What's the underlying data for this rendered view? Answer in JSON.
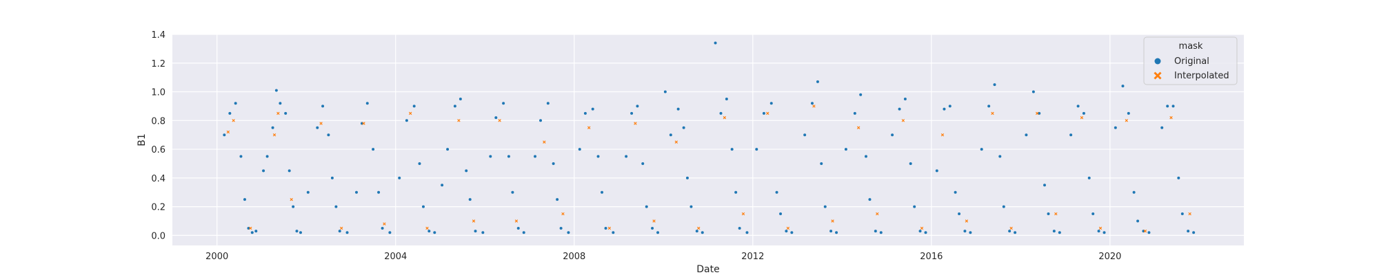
{
  "chart_data": {
    "type": "scatter",
    "title": "",
    "xlabel": "Date",
    "ylabel": "B1",
    "x_domain": [
      "1999-01-01",
      "2022-12-31"
    ],
    "ylim": [
      -0.07,
      1.4
    ],
    "x_ticks": [
      {
        "value": "2000-01-01",
        "label": "2000"
      },
      {
        "value": "2004-01-01",
        "label": "2004"
      },
      {
        "value": "2008-01-01",
        "label": "2008"
      },
      {
        "value": "2012-01-01",
        "label": "2012"
      },
      {
        "value": "2016-01-01",
        "label": "2016"
      },
      {
        "value": "2020-01-01",
        "label": "2020"
      }
    ],
    "y_ticks": [
      {
        "value": 0.0,
        "label": "0.0"
      },
      {
        "value": 0.2,
        "label": "0.2"
      },
      {
        "value": 0.4,
        "label": "0.4"
      },
      {
        "value": 0.6,
        "label": "0.6"
      },
      {
        "value": 0.8,
        "label": "0.8"
      },
      {
        "value": 1.0,
        "label": "1.0"
      },
      {
        "value": 1.2,
        "label": "1.2"
      },
      {
        "value": 1.4,
        "label": "1.4"
      }
    ],
    "grid": true,
    "legend": {
      "title": "mask",
      "position": "top-right",
      "entries": [
        {
          "label": "Original",
          "marker": "circle",
          "color": "#1f77b4"
        },
        {
          "label": "Interpolated",
          "marker": "x",
          "color": "#ff7f0e"
        }
      ]
    },
    "colors": {
      "plot_background": "#eaeaf2",
      "grid": "#ffffff",
      "original": "#1f77b4",
      "interpolated": "#ff7f0e"
    },
    "series": [
      {
        "name": "Original",
        "marker": "circle",
        "points": [
          [
            "2000-03-01",
            0.7
          ],
          [
            "2000-04-15",
            0.85
          ],
          [
            "2000-06-01",
            0.92
          ],
          [
            "2000-07-15",
            0.55
          ],
          [
            "2000-08-15",
            0.25
          ],
          [
            "2000-09-15",
            0.05
          ],
          [
            "2000-10-15",
            0.02
          ],
          [
            "2000-11-15",
            0.03
          ],
          [
            "2001-01-15",
            0.45
          ],
          [
            "2001-02-15",
            0.55
          ],
          [
            "2001-04-01",
            0.75
          ],
          [
            "2001-05-01",
            1.01
          ],
          [
            "2001-06-01",
            0.92
          ],
          [
            "2001-07-15",
            0.85
          ],
          [
            "2001-08-15",
            0.45
          ],
          [
            "2001-09-15",
            0.2
          ],
          [
            "2001-10-15",
            0.03
          ],
          [
            "2001-11-15",
            0.02
          ],
          [
            "2002-01-15",
            0.3
          ],
          [
            "2002-04-01",
            0.75
          ],
          [
            "2002-05-15",
            0.9
          ],
          [
            "2002-07-01",
            0.7
          ],
          [
            "2002-08-01",
            0.4
          ],
          [
            "2002-09-01",
            0.2
          ],
          [
            "2002-10-01",
            0.03
          ],
          [
            "2002-12-01",
            0.02
          ],
          [
            "2003-02-15",
            0.3
          ],
          [
            "2003-04-01",
            0.78
          ],
          [
            "2003-05-15",
            0.92
          ],
          [
            "2003-07-01",
            0.6
          ],
          [
            "2003-08-15",
            0.3
          ],
          [
            "2003-09-15",
            0.05
          ],
          [
            "2003-11-15",
            0.02
          ],
          [
            "2004-02-01",
            0.4
          ],
          [
            "2004-04-01",
            0.8
          ],
          [
            "2004-06-01",
            0.9
          ],
          [
            "2004-07-15",
            0.5
          ],
          [
            "2004-08-15",
            0.2
          ],
          [
            "2004-10-01",
            0.03
          ],
          [
            "2004-11-15",
            0.02
          ],
          [
            "2005-01-15",
            0.35
          ],
          [
            "2005-03-01",
            0.6
          ],
          [
            "2005-05-01",
            0.9
          ],
          [
            "2005-06-15",
            0.95
          ],
          [
            "2005-08-01",
            0.45
          ],
          [
            "2005-09-01",
            0.25
          ],
          [
            "2005-10-15",
            0.03
          ],
          [
            "2005-12-15",
            0.02
          ],
          [
            "2006-02-15",
            0.55
          ],
          [
            "2006-04-01",
            0.82
          ],
          [
            "2006-06-01",
            0.92
          ],
          [
            "2006-07-15",
            0.55
          ],
          [
            "2006-08-15",
            0.3
          ],
          [
            "2006-10-01",
            0.05
          ],
          [
            "2006-11-15",
            0.02
          ],
          [
            "2007-02-15",
            0.55
          ],
          [
            "2007-04-01",
            0.8
          ],
          [
            "2007-06-01",
            0.92
          ],
          [
            "2007-07-15",
            0.5
          ],
          [
            "2007-08-15",
            0.25
          ],
          [
            "2007-09-15",
            0.05
          ],
          [
            "2007-11-15",
            0.02
          ],
          [
            "2008-02-15",
            0.6
          ],
          [
            "2008-04-01",
            0.85
          ],
          [
            "2008-06-01",
            0.88
          ],
          [
            "2008-07-15",
            0.55
          ],
          [
            "2008-08-15",
            0.3
          ],
          [
            "2008-09-15",
            0.05
          ],
          [
            "2008-11-15",
            0.02
          ],
          [
            "2009-03-01",
            0.55
          ],
          [
            "2009-04-15",
            0.85
          ],
          [
            "2009-06-01",
            0.9
          ],
          [
            "2009-07-15",
            0.5
          ],
          [
            "2009-08-15",
            0.2
          ],
          [
            "2009-10-01",
            0.05
          ],
          [
            "2009-11-15",
            0.02
          ],
          [
            "2010-01-15",
            1.0
          ],
          [
            "2010-03-01",
            0.7
          ],
          [
            "2010-05-01",
            0.88
          ],
          [
            "2010-06-15",
            0.75
          ],
          [
            "2010-07-15",
            0.4
          ],
          [
            "2010-08-15",
            0.2
          ],
          [
            "2010-10-01",
            0.03
          ],
          [
            "2010-11-15",
            0.02
          ],
          [
            "2011-03-01",
            1.34
          ],
          [
            "2011-04-15",
            0.85
          ],
          [
            "2011-06-01",
            0.95
          ],
          [
            "2011-07-15",
            0.6
          ],
          [
            "2011-08-15",
            0.3
          ],
          [
            "2011-09-15",
            0.05
          ],
          [
            "2011-11-15",
            0.02
          ],
          [
            "2012-02-01",
            0.6
          ],
          [
            "2012-04-01",
            0.85
          ],
          [
            "2012-06-01",
            0.92
          ],
          [
            "2012-07-15",
            0.3
          ],
          [
            "2012-08-15",
            0.15
          ],
          [
            "2012-10-01",
            0.03
          ],
          [
            "2012-11-15",
            0.02
          ],
          [
            "2013-03-01",
            0.7
          ],
          [
            "2013-05-01",
            0.92
          ],
          [
            "2013-06-15",
            1.07
          ],
          [
            "2013-07-15",
            0.5
          ],
          [
            "2013-08-15",
            0.2
          ],
          [
            "2013-10-01",
            0.03
          ],
          [
            "2013-11-15",
            0.02
          ],
          [
            "2014-02-01",
            0.6
          ],
          [
            "2014-04-15",
            0.85
          ],
          [
            "2014-06-01",
            0.98
          ],
          [
            "2014-07-15",
            0.55
          ],
          [
            "2014-08-15",
            0.25
          ],
          [
            "2014-10-01",
            0.03
          ],
          [
            "2014-11-15",
            0.02
          ],
          [
            "2015-02-15",
            0.7
          ],
          [
            "2015-04-15",
            0.88
          ],
          [
            "2015-06-01",
            0.95
          ],
          [
            "2015-07-15",
            0.5
          ],
          [
            "2015-08-15",
            0.2
          ],
          [
            "2015-10-01",
            0.03
          ],
          [
            "2015-11-15",
            0.02
          ],
          [
            "2016-02-15",
            0.45
          ],
          [
            "2016-04-15",
            0.88
          ],
          [
            "2016-06-01",
            0.9
          ],
          [
            "2016-07-15",
            0.3
          ],
          [
            "2016-08-15",
            0.15
          ],
          [
            "2016-10-01",
            0.03
          ],
          [
            "2016-11-15",
            0.02
          ],
          [
            "2017-02-15",
            0.6
          ],
          [
            "2017-04-15",
            0.9
          ],
          [
            "2017-06-01",
            1.05
          ],
          [
            "2017-07-15",
            0.55
          ],
          [
            "2017-08-15",
            0.2
          ],
          [
            "2017-10-01",
            0.03
          ],
          [
            "2017-11-15",
            0.02
          ],
          [
            "2018-02-15",
            0.7
          ],
          [
            "2018-04-15",
            1.0
          ],
          [
            "2018-06-01",
            0.85
          ],
          [
            "2018-07-15",
            0.35
          ],
          [
            "2018-08-15",
            0.15
          ],
          [
            "2018-10-01",
            0.03
          ],
          [
            "2018-11-15",
            0.02
          ],
          [
            "2019-02-15",
            0.7
          ],
          [
            "2019-04-15",
            0.9
          ],
          [
            "2019-06-01",
            0.85
          ],
          [
            "2019-07-15",
            0.4
          ],
          [
            "2019-08-15",
            0.15
          ],
          [
            "2019-10-01",
            0.03
          ],
          [
            "2019-11-15",
            0.02
          ],
          [
            "2020-02-15",
            0.75
          ],
          [
            "2020-04-15",
            1.04
          ],
          [
            "2020-06-01",
            0.85
          ],
          [
            "2020-07-15",
            0.3
          ],
          [
            "2020-08-15",
            0.1
          ],
          [
            "2020-10-01",
            0.03
          ],
          [
            "2020-11-15",
            0.02
          ],
          [
            "2021-03-01",
            0.75
          ],
          [
            "2021-04-15",
            0.9
          ],
          [
            "2021-06-01",
            0.9
          ],
          [
            "2021-07-15",
            0.4
          ],
          [
            "2021-08-15",
            0.15
          ],
          [
            "2021-10-01",
            0.03
          ],
          [
            "2021-11-15",
            0.02
          ]
        ]
      },
      {
        "name": "Interpolated",
        "marker": "x",
        "points": [
          [
            "2000-04-01",
            0.72
          ],
          [
            "2000-05-15",
            0.8
          ],
          [
            "2000-10-01",
            0.05
          ],
          [
            "2001-04-15",
            0.7
          ],
          [
            "2001-05-15",
            0.85
          ],
          [
            "2001-09-01",
            0.25
          ],
          [
            "2002-05-01",
            0.78
          ],
          [
            "2002-10-15",
            0.05
          ],
          [
            "2003-04-15",
            0.78
          ],
          [
            "2003-10-01",
            0.08
          ],
          [
            "2004-05-01",
            0.85
          ],
          [
            "2004-09-15",
            0.05
          ],
          [
            "2005-06-01",
            0.8
          ],
          [
            "2005-10-01",
            0.1
          ],
          [
            "2006-05-01",
            0.8
          ],
          [
            "2006-09-15",
            0.1
          ],
          [
            "2007-05-01",
            0.65
          ],
          [
            "2007-10-01",
            0.15
          ],
          [
            "2008-05-01",
            0.75
          ],
          [
            "2008-10-15",
            0.05
          ],
          [
            "2009-05-15",
            0.78
          ],
          [
            "2009-10-15",
            0.1
          ],
          [
            "2010-04-15",
            0.65
          ],
          [
            "2010-10-15",
            0.05
          ],
          [
            "2011-05-15",
            0.82
          ],
          [
            "2011-10-15",
            0.15
          ],
          [
            "2012-05-01",
            0.85
          ],
          [
            "2012-10-15",
            0.05
          ],
          [
            "2013-05-15",
            0.9
          ],
          [
            "2013-10-15",
            0.1
          ],
          [
            "2014-05-15",
            0.75
          ],
          [
            "2014-10-15",
            0.15
          ],
          [
            "2015-05-15",
            0.8
          ],
          [
            "2015-10-15",
            0.05
          ],
          [
            "2016-04-01",
            0.7
          ],
          [
            "2016-10-15",
            0.1
          ],
          [
            "2017-05-15",
            0.85
          ],
          [
            "2017-10-15",
            0.05
          ],
          [
            "2018-05-15",
            0.85
          ],
          [
            "2018-10-15",
            0.15
          ],
          [
            "2019-05-15",
            0.82
          ],
          [
            "2019-10-15",
            0.05
          ],
          [
            "2020-05-15",
            0.8
          ],
          [
            "2020-10-15",
            0.03
          ],
          [
            "2021-05-15",
            0.82
          ],
          [
            "2021-10-15",
            0.15
          ]
        ]
      }
    ]
  }
}
